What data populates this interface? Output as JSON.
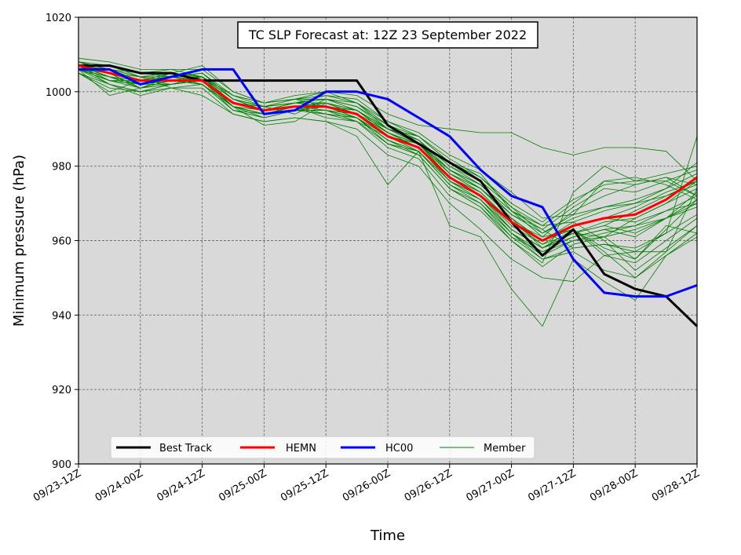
{
  "chart_data": {
    "type": "line",
    "title": "TC SLP Forecast at: 12Z 23 September 2022",
    "xlabel": "Time",
    "ylabel": "Minimum pressure (hPa)",
    "ylim": [
      900,
      1020
    ],
    "yticks": [
      900,
      920,
      940,
      960,
      980,
      1000,
      1020
    ],
    "x": [
      "09/23-12Z",
      "09/23-18Z",
      "09/24-00Z",
      "09/24-06Z",
      "09/24-12Z",
      "09/24-18Z",
      "09/25-00Z",
      "09/25-06Z",
      "09/25-12Z",
      "09/25-18Z",
      "09/26-00Z",
      "09/26-06Z",
      "09/26-12Z",
      "09/26-18Z",
      "09/27-00Z",
      "09/27-06Z",
      "09/27-12Z",
      "09/27-18Z",
      "09/28-00Z",
      "09/28-06Z",
      "09/28-12Z"
    ],
    "xticks": [
      "09/23-12Z",
      "09/24-00Z",
      "09/24-12Z",
      "09/25-00Z",
      "09/25-12Z",
      "09/26-00Z",
      "09/26-12Z",
      "09/27-00Z",
      "09/27-12Z",
      "09/28-00Z",
      "09/28-12Z"
    ],
    "grid": true,
    "legend_position": "bottom-left",
    "background": "#d9d9d9",
    "series": [
      {
        "name": "Best Track",
        "color": "#000000",
        "width": 3,
        "values": [
          1007,
          1007,
          1005,
          1005,
          1003,
          1003,
          1003,
          1003,
          1003,
          1003,
          991,
          986,
          981,
          976,
          965,
          956,
          963,
          951,
          947,
          945,
          937
        ]
      },
      {
        "name": "HEMN",
        "color": "#ff0000",
        "width": 3,
        "values": [
          1007,
          1005,
          1003,
          1003,
          1003,
          997,
          995,
          996,
          996,
          994,
          988,
          985,
          977,
          972,
          965,
          960,
          964,
          966,
          967,
          971,
          977
        ]
      },
      {
        "name": "HC00",
        "color": "#0000ff",
        "width": 3,
        "values": [
          1006,
          1006,
          1002,
          1004,
          1006,
          1006,
          994,
          995,
          1000,
          1000,
          998,
          993,
          988,
          979,
          972,
          969,
          955,
          946,
          945,
          945,
          948
        ]
      }
    ],
    "members": {
      "name": "Member",
      "color": "#008000",
      "width": 0.8,
      "runs": [
        [
          1008,
          1005,
          1001,
          1004,
          1005,
          998,
          996,
          998,
          996,
          995,
          990,
          986,
          979,
          974,
          966,
          958,
          963,
          958,
          955,
          963,
          971
        ],
        [
          1006,
          1002,
          1000,
          1002,
          1003,
          996,
          994,
          995,
          994,
          993,
          986,
          984,
          975,
          971,
          962,
          955,
          957,
          952,
          950,
          957,
          964
        ],
        [
          1009,
          1008,
          1006,
          1006,
          1004,
          999,
          997,
          998,
          999,
          998,
          992,
          988,
          982,
          977,
          969,
          962,
          966,
          969,
          970,
          974,
          981
        ],
        [
          1007,
          1003,
          1002,
          1003,
          1002,
          995,
          993,
          995,
          995,
          992,
          985,
          982,
          972,
          968,
          960,
          953,
          959,
          961,
          966,
          970,
          976
        ],
        [
          1005,
          1000,
          1003,
          1005,
          1007,
          1000,
          997,
          999,
          1000,
          997,
          990,
          987,
          978,
          973,
          965,
          961,
          968,
          972,
          975,
          977,
          972
        ],
        [
          1008,
          1006,
          1004,
          1001,
          999,
          994,
          992,
          993,
          992,
          990,
          983,
          980,
          970,
          963,
          955,
          950,
          949,
          956,
          954,
          960,
          966
        ],
        [
          1006,
          1004,
          1002,
          1004,
          1003,
          997,
          995,
          996,
          996,
          994,
          989,
          985,
          976,
          972,
          963,
          958,
          962,
          964,
          968,
          972,
          975
        ],
        [
          1007,
          1005,
          1001,
          1002,
          1003,
          996,
          991,
          992,
          997,
          995,
          989,
          986,
          979,
          974,
          967,
          963,
          969,
          974,
          973,
          976,
          979
        ],
        [
          1008,
          1007,
          1005,
          1004,
          1002,
          996,
          994,
          996,
          994,
          993,
          987,
          983,
          974,
          969,
          961,
          957,
          961,
          963,
          961,
          966,
          973
        ],
        [
          1006,
          1003,
          1003,
          1005,
          1004,
          998,
          995,
          997,
          997,
          995,
          990,
          986,
          977,
          972,
          964,
          959,
          964,
          966,
          969,
          973,
          976
        ],
        [
          1007,
          1004,
          1002,
          1003,
          1003,
          997,
          996,
          994,
          998,
          996,
          991,
          987,
          980,
          975,
          968,
          964,
          970,
          976,
          977,
          975,
          971
        ],
        [
          1005,
          1002,
          1000,
          1001,
          1002,
          995,
          993,
          995,
          996,
          993,
          987,
          984,
          975,
          970,
          962,
          956,
          960,
          962,
          964,
          968,
          970
        ],
        [
          1007,
          1005,
          1003,
          1004,
          1005,
          999,
          996,
          997,
          999,
          997,
          991,
          988,
          981,
          977,
          970,
          965,
          971,
          975,
          976,
          978,
          980
        ],
        [
          1006,
          999,
          1001,
          1003,
          1003,
          995,
          994,
          996,
          993,
          992,
          986,
          983,
          974,
          970,
          961,
          955,
          958,
          959,
          958,
          962,
          967
        ],
        [
          1008,
          1006,
          1003,
          1002,
          1003,
          997,
          995,
          996,
          995,
          994,
          988,
          985,
          976,
          972,
          963,
          958,
          962,
          965,
          966,
          970,
          974
        ],
        [
          1007,
          1003,
          1002,
          1005,
          1004,
          996,
          995,
          997,
          997,
          994,
          989,
          986,
          978,
          974,
          966,
          960,
          965,
          968,
          970,
          972,
          976
        ],
        [
          1006,
          1004,
          1001,
          1003,
          1002,
          996,
          993,
          995,
          994,
          992,
          988,
          984,
          976,
          971,
          962,
          957,
          960,
          961,
          963,
          966,
          970
        ],
        [
          1008,
          1005,
          1004,
          1004,
          1004,
          998,
          996,
          997,
          998,
          996,
          990,
          987,
          979,
          975,
          967,
          962,
          967,
          969,
          971,
          974,
          978
        ],
        [
          1007,
          1002,
          999,
          1001,
          1001,
          994,
          992,
          993,
          992,
          988,
          975,
          984,
          964,
          961,
          947,
          937,
          955,
          949,
          944,
          956,
          961
        ],
        [
          1006,
          1005,
          1003,
          1003,
          1004,
          999,
          997,
          998,
          998,
          997,
          992,
          989,
          983,
          979,
          973,
          966,
          967,
          976,
          975,
          977,
          975
        ],
        [
          1007,
          1004,
          1002,
          1002,
          1003,
          997,
          995,
          996,
          996,
          995,
          990,
          987,
          980,
          976,
          969,
          964,
          965,
          960,
          952,
          958,
          964
        ],
        [
          1005,
          1001,
          1000,
          1002,
          1004,
          998,
          995,
          996,
          997,
          994,
          990,
          988,
          981,
          978,
          968,
          961,
          963,
          957,
          950,
          956,
          962
        ],
        [
          1007,
          1006,
          1005,
          1006,
          1006,
          1000,
          997,
          998,
          1000,
          999,
          994,
          991,
          990,
          989,
          989,
          985,
          983,
          985,
          985,
          984,
          976
        ],
        [
          1008,
          1006,
          1004,
          1003,
          1002,
          996,
          994,
          995,
          995,
          993,
          986,
          983,
          974,
          969,
          960,
          954,
          973,
          980,
          976,
          976,
          972
        ],
        [
          1006,
          1003,
          1002,
          1004,
          1003,
          996,
          994,
          996,
          996,
          993,
          988,
          985,
          976,
          971,
          963,
          958,
          961,
          963,
          964,
          966,
          969
        ],
        [
          1007,
          1004,
          1003,
          1003,
          1004,
          997,
          995,
          997,
          997,
          995,
          990,
          986,
          978,
          974,
          966,
          960,
          963,
          956,
          957,
          962,
          988
        ],
        [
          1007,
          1005,
          1003,
          1004,
          1003,
          997,
          996,
          997,
          998,
          995,
          989,
          986,
          977,
          973,
          965,
          959,
          962,
          961,
          955,
          964,
          962
        ],
        [
          1008,
          1007,
          1004,
          1005,
          1004,
          998,
          996,
          997,
          996,
          994,
          988,
          986,
          979,
          975,
          968,
          963,
          958,
          959,
          957,
          957,
          974
        ],
        [
          1006,
          1003,
          1001,
          1002,
          1003,
          996,
          994,
          995,
          995,
          993,
          987,
          984,
          975,
          971,
          963,
          958,
          962,
          964,
          962,
          966,
          971
        ],
        [
          1007,
          1004,
          1002,
          1003,
          1004,
          997,
          995,
          996,
          997,
          994,
          989,
          985,
          977,
          973,
          965,
          960,
          964,
          966,
          965,
          968,
          972
        ]
      ]
    }
  }
}
